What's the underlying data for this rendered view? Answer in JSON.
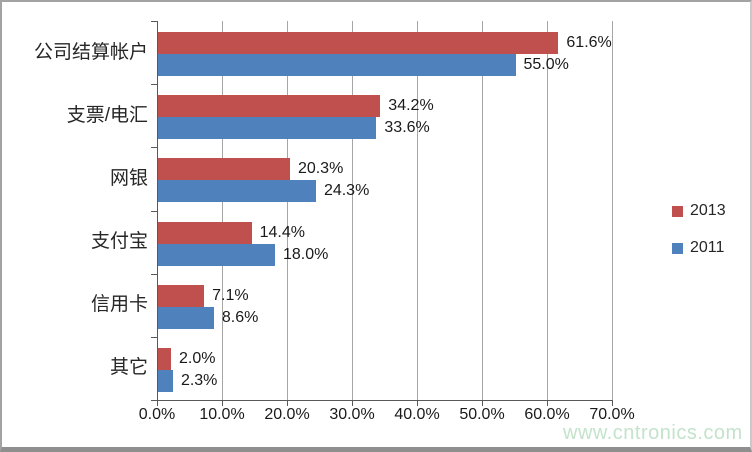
{
  "chart_data": {
    "type": "bar",
    "orientation": "horizontal",
    "title": "",
    "xlabel": "",
    "ylabel": "",
    "xlim": [
      0,
      70
    ],
    "grid": true,
    "legend_position": "right",
    "categories": [
      "公司结算帐户",
      "支票/电汇",
      "网银",
      "支付宝",
      "信用卡",
      "其它"
    ],
    "series": [
      {
        "name": "2013",
        "color": "#C0504D",
        "values": [
          61.6,
          34.2,
          20.3,
          14.4,
          7.1,
          2.0
        ],
        "labels": [
          "61.6%",
          "34.2%",
          "20.3%",
          "14.4%",
          "7.1%",
          "2.0%"
        ]
      },
      {
        "name": "2011",
        "color": "#4F81BD",
        "values": [
          55.0,
          33.6,
          24.3,
          18.0,
          8.6,
          2.3
        ],
        "labels": [
          "55.0%",
          "33.6%",
          "24.3%",
          "18.0%",
          "8.6%",
          "2.3%"
        ]
      }
    ],
    "x_tick_labels": [
      "0.0%",
      "10.0%",
      "20.0%",
      "30.0%",
      "40.0%",
      "50.0%",
      "60.0%",
      "70.0%"
    ]
  },
  "legend": {
    "items": [
      {
        "label": "2013",
        "color": "#C0504D"
      },
      {
        "label": "2011",
        "color": "#4F81BD"
      }
    ]
  },
  "watermark": "www.cntronics.com"
}
